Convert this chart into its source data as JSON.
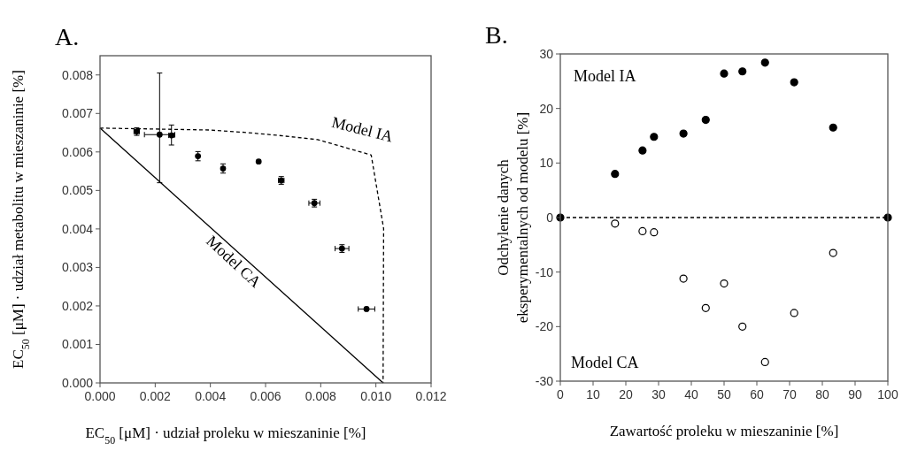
{
  "chart_data": [
    {
      "type": "scatter",
      "title": "A.",
      "xlabel": "EC$_{50}$ [μM] · udział proleku w mieszaninie  [%]",
      "ylabel": "EC$_{50}$ [μM] · udział metabolitu w mieszaninie  [%]",
      "xlim": [
        0,
        0.012
      ],
      "ylim": [
        0,
        0.0085
      ],
      "xticks": [
        {
          "value": 0,
          "label": "0.000"
        },
        {
          "value": 0.002,
          "label": "0.002"
        },
        {
          "value": 0.004,
          "label": "0.004"
        },
        {
          "value": 0.006,
          "label": "0.006"
        },
        {
          "value": 0.008,
          "label": "0.008"
        },
        {
          "value": 0.01,
          "label": "0.010"
        },
        {
          "value": 0.012,
          "label": "0.012"
        }
      ],
      "yticks": [
        {
          "value": 0,
          "label": "0.000"
        },
        {
          "value": 0.001,
          "label": "0.001"
        },
        {
          "value": 0.002,
          "label": "0.002"
        },
        {
          "value": 0.003,
          "label": "0.003"
        },
        {
          "value": 0.004,
          "label": "0.004"
        },
        {
          "value": 0.005,
          "label": "0.005"
        },
        {
          "value": 0.006,
          "label": "0.006"
        },
        {
          "value": 0.007,
          "label": "0.007"
        },
        {
          "value": 0.008,
          "label": "0.008"
        }
      ],
      "grid": false,
      "series": [
        {
          "color": "#000000",
          "marker": "circle",
          "x": [
            0.00133,
            0.00216,
            0.00259,
            0.00355,
            0.00446,
            0.00575,
            0.00657,
            0.00777,
            0.00877,
            0.00966
          ],
          "values": [
            0.00653,
            0.00645,
            0.00643,
            0.00589,
            0.00557,
            0.00575,
            0.00526,
            0.00467,
            0.00349,
            0.00192
          ],
          "errors": [
            0.0001,
            [
              0.0052,
              0.00805
            ],
            [
              0.00618,
              0.0067
            ],
            0.00012,
            0.00012,
            null,
            0.0001,
            0.0001,
            0.0001,
            null
          ],
          "xerrors": [
            0.0001,
            0.00055,
            0.0001,
            null,
            null,
            null,
            0.0001,
            0.0002,
            0.00025,
            0.0003
          ]
        },
        {
          "type": "line",
          "color": "#000000",
          "line_style": "dashed",
          "x": [
            0,
            0.00394,
            0.00523,
            0.00646,
            0.00789,
            0.00983,
            0.01028,
            0.01026
          ],
          "values": [
            0.00662,
            0.00657,
            0.00651,
            0.00643,
            0.00632,
            0.00592,
            0.00401,
            0
          ]
        },
        {
          "type": "line",
          "color": "#000000",
          "line_style": "solid",
          "x": [
            0,
            0.01026
          ],
          "values": [
            0.00662,
            0
          ]
        }
      ],
      "annotations": [
        "Model IA",
        "Model CA"
      ]
    },
    {
      "type": "scatter",
      "title": "B.",
      "xlabel": "Zawartość proleku w mieszaninie  [%]",
      "ylabel": "Odchylenie danych\neksperymentalnych  od modelu [%]",
      "xlim": [
        0,
        100
      ],
      "ylim": [
        -30,
        30
      ],
      "xticks": [
        0,
        10,
        20,
        30,
        40,
        50,
        60,
        70,
        80,
        90,
        100
      ],
      "yticks": [
        -30,
        -20,
        -10,
        0,
        10,
        20,
        30
      ],
      "marker": "circle",
      "grid": false,
      "ref_lines": [
        {
          "axis": "y",
          "value": 0,
          "color": "#000000",
          "line_style": "dashed"
        }
      ],
      "series": [
        {
          "color": "#000000",
          "x": [
            0,
            16.7,
            25.1,
            28.6,
            37.6,
            44.4,
            50,
            55.6,
            62.5,
            71.4,
            83.3,
            100
          ],
          "values": [
            0,
            8,
            12.3,
            14.8,
            15.4,
            17.9,
            26.4,
            26.8,
            28.4,
            24.8,
            16.5,
            0
          ]
        },
        {
          "color": "#000000",
          "x": [
            16.7,
            25.1,
            28.6,
            37.6,
            44.4,
            50,
            55.6,
            62.5,
            71.4,
            83.3
          ],
          "values": [
            -1.1,
            -2.5,
            -2.7,
            -11.2,
            -16.6,
            -12.1,
            -20,
            -26.5,
            -17.5,
            -6.5
          ]
        }
      ],
      "annotations": [
        "Model IA",
        "Model CA"
      ]
    }
  ]
}
